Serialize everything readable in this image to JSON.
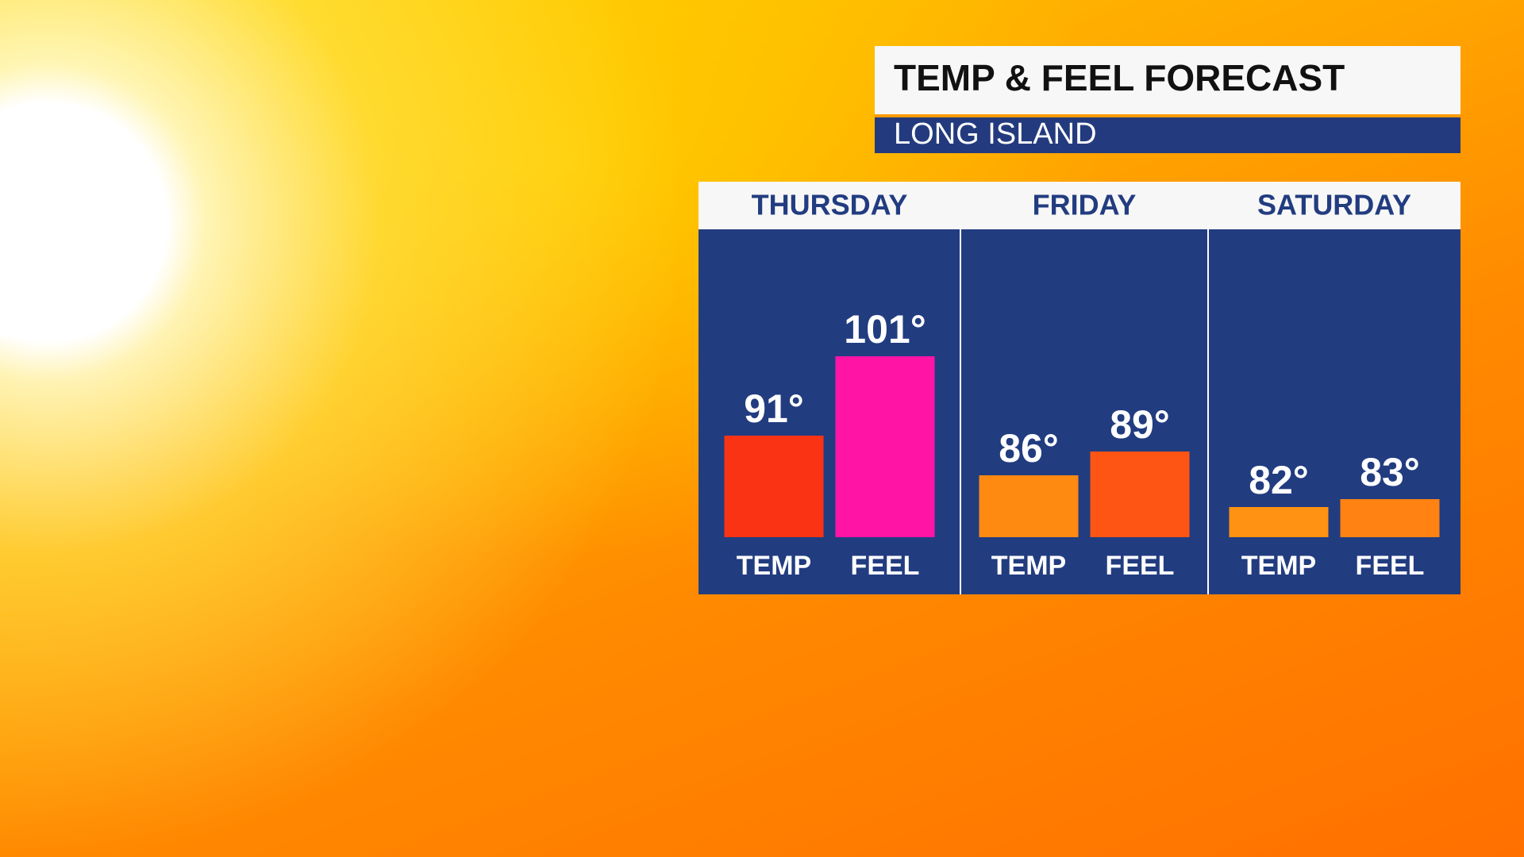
{
  "chart_data": {
    "type": "bar",
    "title": "TEMP & FEEL FORECAST",
    "subtitle": "LONG ISLAND",
    "categories": [
      "THURSDAY",
      "FRIDAY",
      "SATURDAY"
    ],
    "series": [
      {
        "name": "TEMP",
        "colors": [
          "#f93314",
          "#ff8a12",
          "#ff9212"
        ],
        "values": [
          91,
          86,
          82
        ],
        "value_labels": [
          "91°",
          "86°",
          "82°"
        ]
      },
      {
        "name": "FEEL",
        "colors": [
          "#ff14a6",
          "#ff5514",
          "#ff8212"
        ],
        "values": [
          101,
          89,
          83
        ],
        "value_labels": [
          "101°",
          "89°",
          "83°"
        ]
      }
    ]
  }
}
